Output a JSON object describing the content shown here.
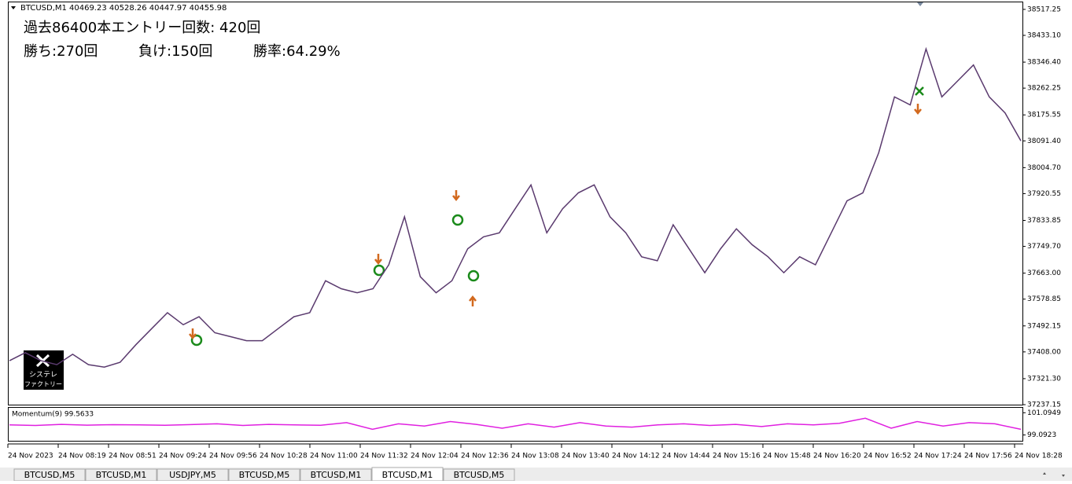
{
  "header": {
    "symbol": "BTCUSD,M1",
    "ohlc": "40469.23 40528.26 40447.97 40455.98"
  },
  "overlay": {
    "entries": "過去86400本エントリー回数: 420回",
    "wins": "勝ち:270回",
    "losses": "負け:150回",
    "win_rate": "勝率:64.29%"
  },
  "logo": {
    "line1": "システレ",
    "line2": "ファクトリー"
  },
  "price_chart": {
    "ylim": [
      37237.15,
      38540
    ],
    "yticks": [
      38517.25,
      {
        "value": 38433.1,
        "label": "38433.10"
      },
      {
        "value": 38346.4,
        "label": "38346.40"
      },
      38262.25,
      38175.55,
      {
        "value": 38091.4,
        "label": "38091.40"
      },
      {
        "value": 38004.7,
        "label": "38004.70"
      },
      37920.55,
      37833.85,
      {
        "value": 37749.7,
        "label": "37749.70"
      },
      {
        "value": 37663,
        "label": "37663.00"
      },
      37578.85,
      37492.15,
      {
        "value": 37408,
        "label": "37408.00"
      },
      {
        "value": 37321.3,
        "label": "37321.30"
      },
      37237.15
    ],
    "closes": [
      37379.5,
      37405.4,
      37379.5,
      37366.6,
      37400.2,
      37366.6,
      37358.8,
      37374.4,
      37431.3,
      37483.1,
      37534.8,
      37496.0,
      37521.9,
      37470.1,
      37457.2,
      37444.2,
      37444.2,
      37483.1,
      37521.9,
      37534.8,
      37638.4,
      37612.5,
      37599.6,
      37612.5,
      37690.2,
      37845.5,
      37651.3,
      37599.6,
      37638.4,
      37742.0,
      37780.8,
      37793.7,
      37871.4,
      37949.0,
      37793.7,
      37871.4,
      37923.2,
      37949.0,
      37845.5,
      37793.7,
      37716.0,
      37703.1,
      37819.6,
      37742.0,
      37664.3,
      37742.0,
      37806.7,
      37754.9,
      37716.0,
      37664.3,
      37716.0,
      37690.2,
      37793.7,
      37897.3,
      37923.2,
      38052.6,
      38233.8,
      38207.9,
      38389.2,
      38233.8,
      38285.6,
      38337.3,
      38233.8,
      38182.0,
      38091.4
    ]
  },
  "momentum": {
    "label": "Momentum(9) 99.5633",
    "ylim": [
      98.57,
      101.54
    ],
    "yticks": [
      101.0949,
      99.0923
    ],
    "values": [
      100.0,
      99.95,
      100.05,
      99.98,
      100.02,
      100.0,
      99.96,
      100.03,
      100.1,
      99.95,
      100.05,
      100.0,
      99.97,
      100.2,
      99.6,
      100.1,
      99.9,
      100.3,
      100.05,
      99.7,
      100.1,
      99.8,
      100.2,
      99.9,
      99.8,
      100.0,
      100.1,
      99.95,
      100.05,
      99.85,
      100.1,
      100.0,
      100.15,
      100.6,
      99.7,
      100.3,
      99.9,
      100.2,
      100.1,
      99.6
    ]
  },
  "time_axis": [
    "24 Nov 2023",
    "24 Nov 08:19",
    "24 Nov 08:51",
    "24 Nov 09:24",
    "24 Nov 09:56",
    "24 Nov 10:28",
    "24 Nov 11:00",
    "24 Nov 11:32",
    "24 Nov 12:04",
    "24 Nov 12:36",
    "24 Nov 13:08",
    "24 Nov 13:40",
    "24 Nov 14:12",
    "24 Nov 14:44",
    "24 Nov 15:16",
    "24 Nov 15:48",
    "24 Nov 16:20",
    "24 Nov 16:52",
    "24 Nov 17:24",
    "24 Nov 17:56",
    "24 Nov 18:28"
  ],
  "tabs": [
    "BTCUSD,M5",
    "BTCUSD,M1",
    "USDJPY,M5",
    "BTCUSD,M5",
    "BTCUSD,M1",
    "BTCUSD,M1",
    "BTCUSD,M5"
  ],
  "active_tab": 5
}
